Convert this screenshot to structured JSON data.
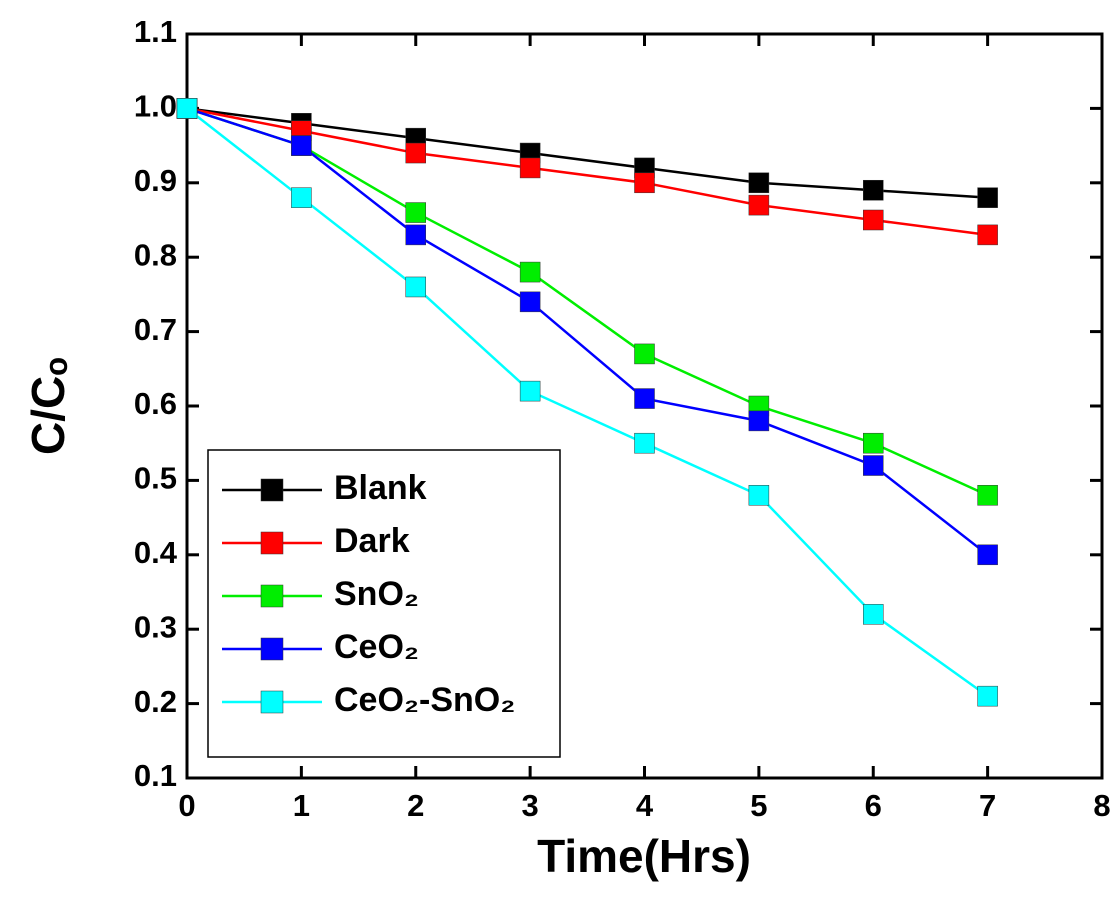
{
  "chart_data": {
    "type": "line",
    "x_label": "Time(Hrs)",
    "y_label": "C/Cₒ",
    "x": [
      0,
      1,
      2,
      3,
      4,
      5,
      6,
      7
    ],
    "series": [
      {
        "name": "Blank",
        "color": "#000000",
        "values": [
          1.0,
          0.98,
          0.96,
          0.94,
          0.92,
          0.9,
          0.89,
          0.88
        ]
      },
      {
        "name": "Dark",
        "color": "#ff0000",
        "values": [
          1.0,
          0.97,
          0.94,
          0.92,
          0.9,
          0.87,
          0.85,
          0.83
        ]
      },
      {
        "name": "SnO₂",
        "color": "#00ee00",
        "values": [
          1.0,
          0.95,
          0.86,
          0.78,
          0.67,
          0.6,
          0.55,
          0.48
        ]
      },
      {
        "name": "CeO₂",
        "color": "#0000ff",
        "values": [
          1.0,
          0.95,
          0.83,
          0.74,
          0.61,
          0.58,
          0.52,
          0.4
        ]
      },
      {
        "name": "CeO₂-SnO₂",
        "color": "#00ffff",
        "values": [
          1.0,
          0.88,
          0.76,
          0.62,
          0.55,
          0.48,
          0.32,
          0.21
        ]
      }
    ],
    "xlim": [
      0,
      8
    ],
    "xticks": [
      0,
      1,
      2,
      3,
      4,
      5,
      6,
      7,
      8
    ],
    "ylim": [
      0.1,
      1.1
    ],
    "yticks": [
      0.1,
      0.2,
      0.3,
      0.4,
      0.5,
      0.6,
      0.7,
      0.8,
      0.9,
      {
        "value": 1,
        "label": "1.0"
      },
      1.1
    ],
    "legend": "lower-left"
  }
}
